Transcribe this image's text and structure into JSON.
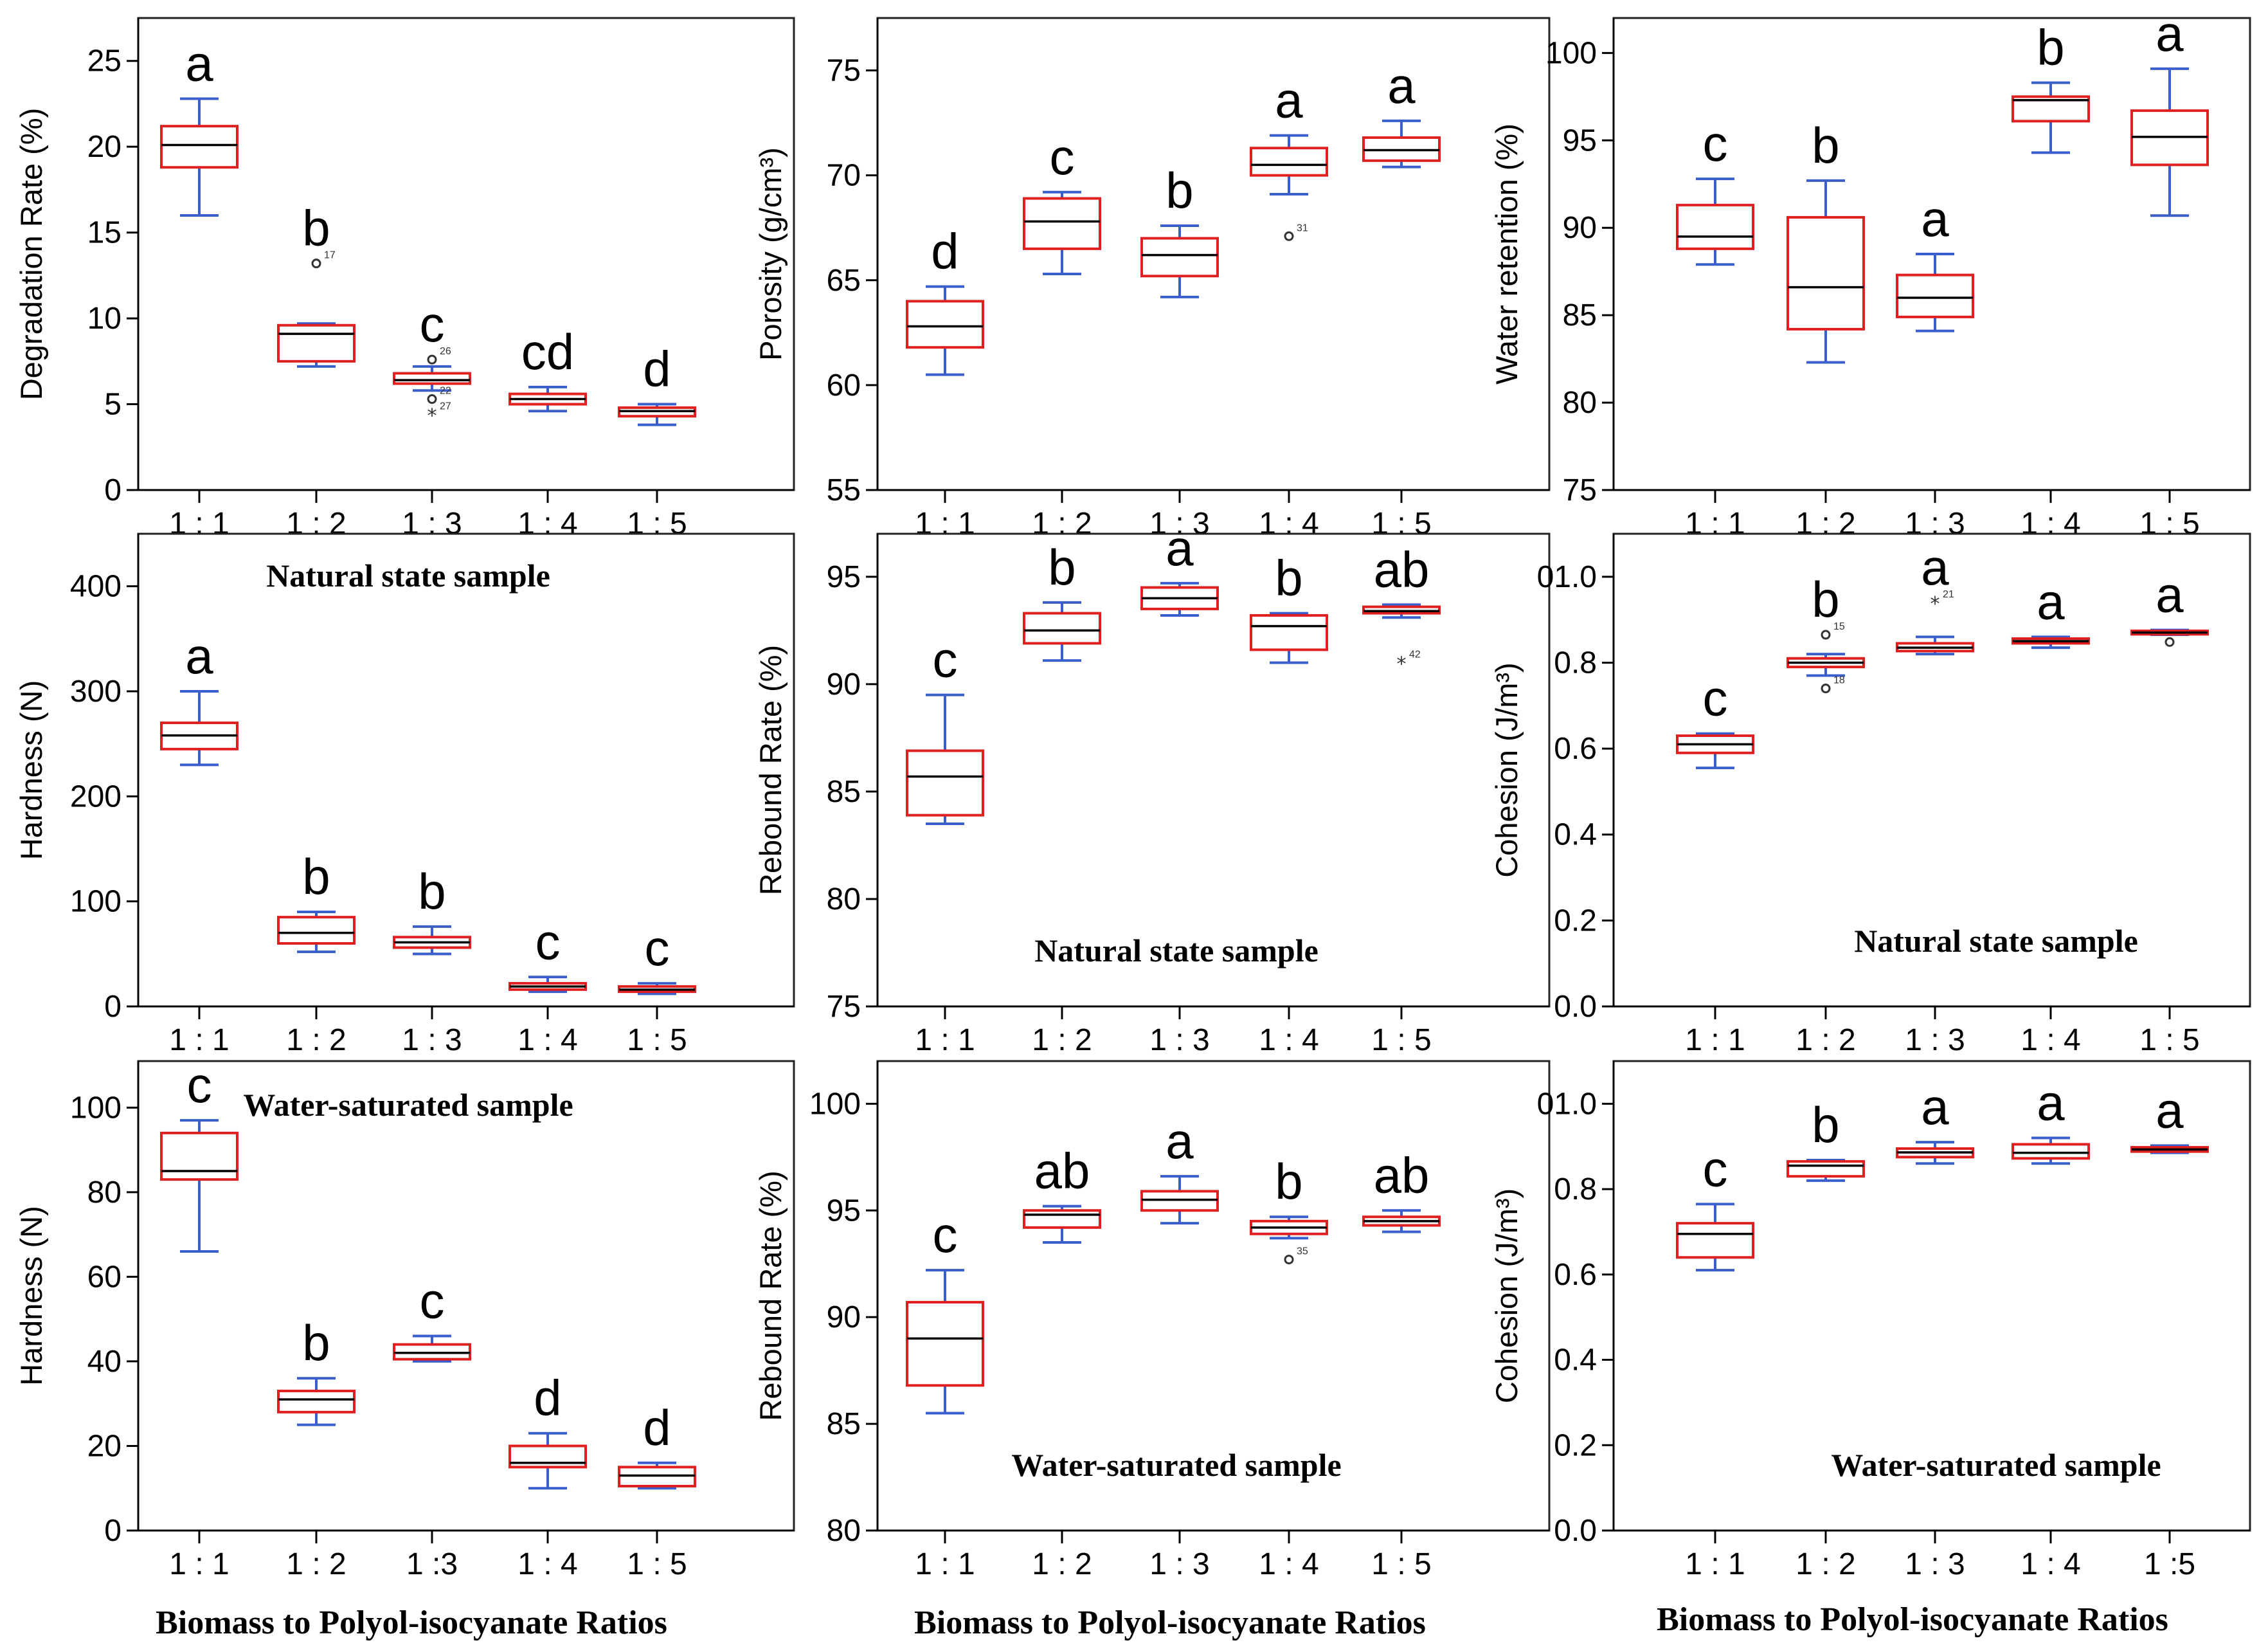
{
  "chart_data": [
    {
      "type": "box",
      "ylabel": "Degradation Rate (%)",
      "ylim": [
        0,
        27.5
      ],
      "yticks": [
        0,
        5,
        10,
        15,
        20,
        25
      ],
      "ytick_labels": [
        "0",
        "5",
        "10",
        "15",
        "20",
        "25"
      ],
      "categories": [
        "1 : 1",
        "1 : 2",
        "1 : 3",
        "1 : 4",
        "1 : 5"
      ],
      "caption": "",
      "boxes": [
        {
          "min": 16.0,
          "q1": 18.8,
          "median": 20.1,
          "q3": 21.2,
          "max": 22.8,
          "letter": "a",
          "outliers": []
        },
        {
          "min": 7.2,
          "q1": 7.5,
          "median": 9.1,
          "q3": 9.6,
          "max": 9.7,
          "letter": "b",
          "outliers": [
            {
              "value": 13.2,
              "symbol": "circle",
              "label": "17"
            }
          ]
        },
        {
          "min": 5.8,
          "q1": 6.2,
          "median": 6.4,
          "q3": 6.8,
          "max": 7.2,
          "letter": "c",
          "outliers": [
            {
              "value": 7.6,
              "symbol": "circle",
              "label": "26"
            },
            {
              "value": 5.3,
              "symbol": "circle",
              "label": "22"
            },
            {
              "value": 4.4,
              "symbol": "star",
              "label": "27"
            }
          ]
        },
        {
          "min": 4.6,
          "q1": 5.0,
          "median": 5.3,
          "q3": 5.6,
          "max": 6.0,
          "letter": "cd",
          "outliers": []
        },
        {
          "min": 3.8,
          "q1": 4.3,
          "median": 4.6,
          "q3": 4.8,
          "max": 5.0,
          "letter": "d",
          "outliers": []
        }
      ]
    },
    {
      "type": "box",
      "ylabel": "Porosity (g/cm³)",
      "ylim": [
        55,
        77.5
      ],
      "yticks": [
        55,
        60,
        65,
        70,
        75
      ],
      "ytick_labels": [
        "55",
        "60",
        "65",
        "70",
        "75"
      ],
      "categories": [
        "1 : 1",
        "1 : 2",
        "1 : 3",
        "1 : 4",
        "1 : 5"
      ],
      "caption": "",
      "boxes": [
        {
          "min": 60.5,
          "q1": 61.8,
          "median": 62.8,
          "q3": 64.0,
          "max": 64.7,
          "letter": "d",
          "outliers": []
        },
        {
          "min": 65.3,
          "q1": 66.5,
          "median": 67.8,
          "q3": 68.9,
          "max": 69.2,
          "letter": "c",
          "outliers": []
        },
        {
          "min": 64.2,
          "q1": 65.2,
          "median": 66.2,
          "q3": 67.0,
          "max": 67.6,
          "letter": "b",
          "outliers": []
        },
        {
          "min": 69.1,
          "q1": 70.0,
          "median": 70.5,
          "q3": 71.3,
          "max": 71.9,
          "letter": "a",
          "outliers": [
            {
              "value": 67.1,
              "symbol": "circle",
              "label": "31"
            }
          ]
        },
        {
          "min": 70.4,
          "q1": 70.7,
          "median": 71.2,
          "q3": 71.8,
          "max": 72.6,
          "letter": "a",
          "outliers": []
        }
      ]
    },
    {
      "type": "box",
      "ylabel": "Water retention (%)",
      "ylim": [
        75,
        102
      ],
      "yticks": [
        75,
        80,
        85,
        90,
        95,
        100
      ],
      "ytick_labels": [
        "75",
        "80",
        "85",
        "90",
        "95",
        "100"
      ],
      "categories": [
        "1 : 1",
        "1 : 2",
        "1 : 3",
        "1 : 4",
        "1 : 5"
      ],
      "caption": "",
      "boxes": [
        {
          "min": 87.9,
          "q1": 88.8,
          "median": 89.5,
          "q3": 91.3,
          "max": 92.8,
          "letter": "c",
          "outliers": []
        },
        {
          "min": 82.3,
          "q1": 84.2,
          "median": 86.6,
          "q3": 90.6,
          "max": 92.7,
          "letter": "b",
          "outliers": []
        },
        {
          "min": 84.1,
          "q1": 84.9,
          "median": 86.0,
          "q3": 87.3,
          "max": 88.5,
          "letter": "a",
          "outliers": []
        },
        {
          "min": 94.3,
          "q1": 96.1,
          "median": 97.3,
          "q3": 97.5,
          "max": 98.3,
          "letter": "b",
          "outliers": []
        },
        {
          "min": 90.7,
          "q1": 93.6,
          "median": 95.2,
          "q3": 96.7,
          "max": 99.1,
          "letter": "a",
          "outliers": []
        }
      ]
    },
    {
      "type": "box",
      "ylabel": "Hardness (N)",
      "ylim": [
        0,
        450
      ],
      "yticks": [
        0,
        100,
        200,
        300,
        400
      ],
      "ytick_labels": [
        "0",
        "100",
        "200",
        "300",
        "400"
      ],
      "categories": [
        "1 : 1",
        "1 : 2",
        "1 : 3",
        "1 : 4",
        "1 : 5"
      ],
      "caption": "Natural state sample",
      "boxes": [
        {
          "min": 230,
          "q1": 245,
          "median": 258,
          "q3": 270,
          "max": 300,
          "letter": "a",
          "outliers": []
        },
        {
          "min": 52,
          "q1": 60,
          "median": 70,
          "q3": 85,
          "max": 90,
          "letter": "b",
          "outliers": []
        },
        {
          "min": 50,
          "q1": 56,
          "median": 61,
          "q3": 66,
          "max": 76,
          "letter": "b",
          "outliers": []
        },
        {
          "min": 14,
          "q1": 16,
          "median": 19,
          "q3": 22,
          "max": 28,
          "letter": "c",
          "outliers": []
        },
        {
          "min": 12,
          "q1": 14,
          "median": 16,
          "q3": 19,
          "max": 22,
          "letter": "c",
          "outliers": []
        }
      ]
    },
    {
      "type": "box",
      "ylabel": "Rebound Rate (%)",
      "ylim": [
        75,
        97
      ],
      "yticks": [
        75,
        80,
        85,
        90,
        95
      ],
      "ytick_labels": [
        "75",
        "80",
        "85",
        "90",
        "95"
      ],
      "categories": [
        "1 : 1",
        "1 : 2",
        "1 : 3",
        "1 : 4",
        "1 : 5"
      ],
      "caption": "Natural state sample",
      "boxes": [
        {
          "min": 83.5,
          "q1": 83.9,
          "median": 85.7,
          "q3": 86.9,
          "max": 89.5,
          "letter": "c",
          "outliers": []
        },
        {
          "min": 91.1,
          "q1": 91.9,
          "median": 92.5,
          "q3": 93.3,
          "max": 93.8,
          "letter": "b",
          "outliers": []
        },
        {
          "min": 93.2,
          "q1": 93.5,
          "median": 94.0,
          "q3": 94.5,
          "max": 94.7,
          "letter": "a",
          "outliers": []
        },
        {
          "min": 91.0,
          "q1": 91.6,
          "median": 92.7,
          "q3": 93.2,
          "max": 93.3,
          "letter": "b",
          "outliers": []
        },
        {
          "min": 93.1,
          "q1": 93.3,
          "median": 93.4,
          "q3": 93.6,
          "max": 93.7,
          "letter": "ab",
          "outliers": [
            {
              "value": 91.0,
              "symbol": "star",
              "label": "42"
            }
          ]
        }
      ]
    },
    {
      "type": "box",
      "ylabel": "Cohesion (J/m³)",
      "ylim": [
        0,
        1.1
      ],
      "yticks": [
        0,
        0.2,
        0.4,
        0.6,
        0.8,
        1.0
      ],
      "ytick_labels": [
        "0.0",
        "0.2",
        "0.4",
        "0.6",
        "0.8",
        "01.0"
      ],
      "categories": [
        "1 : 1",
        "1 : 2",
        "1 : 3",
        "1 : 4",
        "1 : 5"
      ],
      "caption": "Natural state sample",
      "boxes": [
        {
          "min": 0.555,
          "q1": 0.59,
          "median": 0.61,
          "q3": 0.63,
          "max": 0.635,
          "letter": "c",
          "outliers": []
        },
        {
          "min": 0.77,
          "q1": 0.79,
          "median": 0.8,
          "q3": 0.81,
          "max": 0.82,
          "letter": "b",
          "outliers": [
            {
              "value": 0.865,
              "symbol": "circle",
              "label": "15"
            },
            {
              "value": 0.74,
              "symbol": "circle",
              "label": "18"
            }
          ]
        },
        {
          "min": 0.82,
          "q1": 0.827,
          "median": 0.835,
          "q3": 0.845,
          "max": 0.86,
          "letter": "a",
          "outliers": [
            {
              "value": 0.94,
              "symbol": "star",
              "label": "21"
            }
          ]
        },
        {
          "min": 0.835,
          "q1": 0.845,
          "median": 0.85,
          "q3": 0.856,
          "max": 0.86,
          "letter": "a",
          "outliers": []
        },
        {
          "min": 0.865,
          "q1": 0.866,
          "median": 0.87,
          "q3": 0.874,
          "max": 0.876,
          "letter": "a",
          "outliers": [
            {
              "value": 0.848,
              "symbol": "circle",
              "label": ""
            }
          ]
        }
      ]
    },
    {
      "type": "box",
      "ylabel": "Hardness (N)",
      "ylim": [
        0,
        111
      ],
      "yticks": [
        0,
        20,
        40,
        60,
        80,
        100
      ],
      "ytick_labels": [
        "0",
        "20",
        "40",
        "60",
        "80",
        "100"
      ],
      "categories": [
        "1 : 1",
        "1 : 2",
        "1 :3",
        "1 : 4",
        "1 : 5"
      ],
      "caption": "Water-saturated sample",
      "boxes": [
        {
          "min": 66,
          "q1": 83,
          "median": 85,
          "q3": 94,
          "max": 97,
          "letter": "c",
          "outliers": []
        },
        {
          "min": 25,
          "q1": 28,
          "median": 31,
          "q3": 33,
          "max": 36,
          "letter": "b",
          "outliers": []
        },
        {
          "min": 40,
          "q1": 40.5,
          "median": 42,
          "q3": 44,
          "max": 46,
          "letter": "c",
          "outliers": []
        },
        {
          "min": 10,
          "q1": 15,
          "median": 16,
          "q3": 20,
          "max": 23,
          "letter": "d",
          "outliers": []
        },
        {
          "min": 10,
          "q1": 10.5,
          "median": 13,
          "q3": 15,
          "max": 16,
          "letter": "d",
          "outliers": []
        }
      ]
    },
    {
      "type": "box",
      "ylabel": "Rebound Rate (%)",
      "ylim": [
        80,
        102
      ],
      "yticks": [
        80,
        85,
        90,
        95,
        100
      ],
      "ytick_labels": [
        "80",
        "85",
        "90",
        "95",
        "100"
      ],
      "categories": [
        "1 : 1",
        "1 : 2",
        "1 : 3",
        "1 : 4",
        "1 : 5"
      ],
      "caption": "Water-saturated sample",
      "boxes": [
        {
          "min": 85.5,
          "q1": 86.8,
          "median": 89.0,
          "q3": 90.7,
          "max": 92.2,
          "letter": "c",
          "outliers": []
        },
        {
          "min": 93.5,
          "q1": 94.2,
          "median": 94.8,
          "q3": 95.0,
          "max": 95.2,
          "letter": "ab",
          "outliers": []
        },
        {
          "min": 94.4,
          "q1": 95.0,
          "median": 95.5,
          "q3": 95.9,
          "max": 96.6,
          "letter": "a",
          "outliers": []
        },
        {
          "min": 93.7,
          "q1": 93.9,
          "median": 94.2,
          "q3": 94.5,
          "max": 94.7,
          "letter": "b",
          "outliers": [
            {
              "value": 92.7,
              "symbol": "circle",
              "label": "35"
            }
          ]
        },
        {
          "min": 94.0,
          "q1": 94.3,
          "median": 94.5,
          "q3": 94.7,
          "max": 95.0,
          "letter": "ab",
          "outliers": []
        }
      ]
    },
    {
      "type": "box",
      "ylabel": "Cohesion (J/m³)",
      "ylim": [
        0,
        1.1
      ],
      "yticks": [
        0,
        0.2,
        0.4,
        0.6,
        0.8,
        1.0
      ],
      "ytick_labels": [
        "0.0",
        "0.2",
        "0.4",
        "0.6",
        "0.8",
        "01.0"
      ],
      "categories": [
        "1 : 1",
        "1 : 2",
        "1 : 3",
        "1 : 4",
        "1 :5"
      ],
      "caption": "Water-saturated sample",
      "boxes": [
        {
          "min": 0.61,
          "q1": 0.64,
          "median": 0.695,
          "q3": 0.72,
          "max": 0.765,
          "letter": "c",
          "outliers": []
        },
        {
          "min": 0.82,
          "q1": 0.83,
          "median": 0.855,
          "q3": 0.865,
          "max": 0.868,
          "letter": "b",
          "outliers": []
        },
        {
          "min": 0.86,
          "q1": 0.875,
          "median": 0.886,
          "q3": 0.895,
          "max": 0.91,
          "letter": "a",
          "outliers": []
        },
        {
          "min": 0.86,
          "q1": 0.872,
          "median": 0.885,
          "q3": 0.905,
          "max": 0.92,
          "letter": "a",
          "outliers": []
        },
        {
          "min": 0.885,
          "q1": 0.888,
          "median": 0.893,
          "q3": 0.898,
          "max": 0.902,
          "letter": "a",
          "outliers": []
        }
      ]
    }
  ],
  "xlabels": [
    "Biomass to Polyol-isocyanate Ratios",
    "Biomass to Polyol-isocyanate Ratios",
    "Biomass to Polyol-isocyanate Ratios"
  ],
  "colors": {
    "box_edge": "#e02020",
    "whisker": "#3a5fcd",
    "median": "#000000",
    "axis": "#000000"
  }
}
